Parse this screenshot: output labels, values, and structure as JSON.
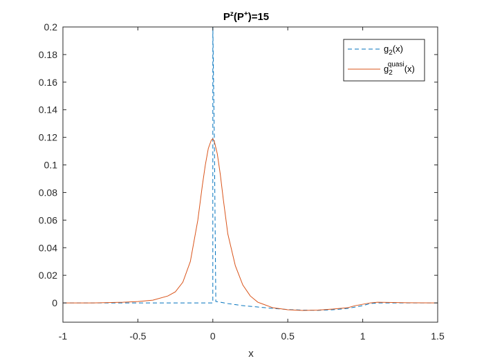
{
  "chart_data": {
    "type": "line",
    "title": {
      "base": "P",
      "sup1": "z",
      "mid": "(P",
      "sup2": "+",
      "end": ")=15"
    },
    "xlabel": "x",
    "ylabel": "",
    "xlim": [
      -1,
      1.5
    ],
    "ylim": [
      -0.014,
      0.2
    ],
    "x_ticks": [
      -1,
      -0.5,
      0,
      0.5,
      1,
      1.5
    ],
    "x_tick_labels": [
      "-1",
      "-0.5",
      "0",
      "0.5",
      "1",
      "1.5"
    ],
    "y_ticks": [
      0,
      0.02,
      0.04,
      0.06,
      0.08,
      0.1,
      0.12,
      0.14,
      0.16,
      0.18,
      0.2
    ],
    "y_tick_labels": [
      "0",
      "0.02",
      "0.04",
      "0.06",
      "0.08",
      "0.1",
      "0.12",
      "0.14",
      "0.16",
      "0.18",
      "0.2"
    ],
    "grid": false,
    "legend_position": "top-right",
    "series": [
      {
        "name": "g2(x)",
        "legend": {
          "base": "g",
          "sub": "2",
          "sup": "",
          "end": "(x)"
        },
        "style": "dashed",
        "color": "#0072BD",
        "x": [
          -1,
          -0.5,
          -0.2,
          -0.05,
          0,
          0.0001,
          0.01,
          0.02,
          0.05,
          0.1,
          0.2,
          0.3,
          0.4,
          0.5,
          0.6,
          0.7,
          0.8,
          0.9,
          1.0,
          1.05,
          1.1,
          1.2,
          1.3,
          1.4,
          1.5
        ],
        "y": [
          0,
          0,
          0,
          0,
          0,
          0.2,
          0.12,
          0.001,
          0.0005,
          -0.0005,
          -0.002,
          -0.003,
          -0.004,
          -0.0048,
          -0.0052,
          -0.0054,
          -0.005,
          -0.004,
          -0.002,
          -0.0005,
          0,
          0,
          0,
          0,
          0
        ]
      },
      {
        "name": "g2quasi(x)",
        "legend": {
          "base": "g",
          "sub": "2",
          "sup": "quasi",
          "end": "(x)"
        },
        "style": "solid",
        "color": "#D95319",
        "x": [
          -1,
          -0.8,
          -0.6,
          -0.5,
          -0.4,
          -0.3,
          -0.25,
          -0.2,
          -0.15,
          -0.1,
          -0.07,
          -0.05,
          -0.03,
          -0.01,
          0,
          0.01,
          0.03,
          0.05,
          0.07,
          0.1,
          0.15,
          0.2,
          0.25,
          0.3,
          0.4,
          0.5,
          0.6,
          0.7,
          0.8,
          0.9,
          0.95,
          1.0,
          1.05,
          1.1,
          1.2,
          1.3,
          1.5
        ],
        "y": [
          0,
          0,
          0.0005,
          0.001,
          0.002,
          0.005,
          0.008,
          0.015,
          0.03,
          0.06,
          0.085,
          0.1,
          0.112,
          0.118,
          0.119,
          0.117,
          0.108,
          0.093,
          0.075,
          0.05,
          0.027,
          0.013,
          0.005,
          0.0005,
          -0.0035,
          -0.005,
          -0.0055,
          -0.0052,
          -0.0045,
          -0.0035,
          -0.002,
          -0.001,
          0,
          0.0005,
          0.0003,
          0.0001,
          0
        ]
      }
    ]
  }
}
